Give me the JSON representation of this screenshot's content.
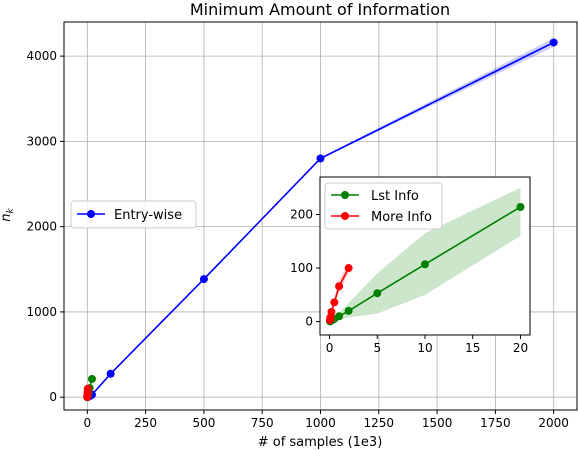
{
  "chart_data": [
    {
      "type": "line",
      "title": "Minimum Amount of Information",
      "xlabel": "# of samples (1e3)",
      "ylabel": "n_k",
      "xlim": [
        -100,
        2100
      ],
      "ylim": [
        -150,
        4400
      ],
      "xticks": [
        0,
        250,
        500,
        750,
        1000,
        1250,
        1500,
        1750,
        2000
      ],
      "yticks": [
        0,
        1000,
        2000,
        3000,
        4000
      ],
      "grid": true,
      "legend": "center-left",
      "series": [
        {
          "name": "Entry-wise",
          "color": "#0000ff",
          "x": [
            1,
            2,
            5,
            10,
            20,
            100,
            500,
            1000,
            2000
          ],
          "y": [
            1,
            2,
            6,
            12,
            30,
            275,
            1385,
            2800,
            4160
          ],
          "band_lower": [
            1,
            2,
            5,
            11,
            28,
            270,
            1375,
            2790,
            4110
          ],
          "band_upper": [
            1,
            2,
            7,
            13,
            32,
            280,
            1395,
            2810,
            4210
          ]
        },
        {
          "name": "Lst Info",
          "color": "#008000",
          "x": [
            0.05,
            0.1,
            0.2,
            0.5,
            1,
            2,
            5,
            10,
            20
          ],
          "y": [
            0.5,
            1,
            2,
            5,
            10,
            20,
            53,
            107,
            214
          ]
        },
        {
          "name": "More Info",
          "color": "#ff0000",
          "x": [
            0.05,
            0.1,
            0.2,
            0.5,
            1,
            2
          ],
          "y": [
            3,
            8,
            18,
            36,
            66,
            100
          ]
        }
      ]
    },
    {
      "type": "line",
      "title": "",
      "xlim": [
        -1,
        21
      ],
      "ylim": [
        -25,
        270
      ],
      "xticks": [
        0,
        5,
        10,
        15,
        20
      ],
      "yticks": [
        0,
        100,
        200
      ],
      "grid": false,
      "legend": "top-left",
      "series": [
        {
          "name": "Lst Info",
          "color": "#008000",
          "x": [
            0.05,
            0.1,
            0.2,
            0.5,
            1,
            2,
            5,
            10,
            20
          ],
          "y": [
            0.5,
            1,
            2,
            5,
            10,
            20,
            53,
            107,
            214
          ],
          "band_lower": [
            0,
            0.5,
            1,
            2,
            4,
            8,
            15,
            50,
            160
          ],
          "band_upper": [
            1,
            2,
            3,
            8,
            16,
            35,
            90,
            165,
            250
          ]
        },
        {
          "name": "More Info",
          "color": "#ff0000",
          "x": [
            0.05,
            0.1,
            0.2,
            0.5,
            1,
            2
          ],
          "y": [
            3,
            8,
            18,
            36,
            66,
            100
          ],
          "band_lower": [
            0,
            2,
            8,
            28,
            55,
            90
          ],
          "band_upper": [
            6,
            14,
            26,
            44,
            77,
            110
          ]
        }
      ]
    }
  ]
}
